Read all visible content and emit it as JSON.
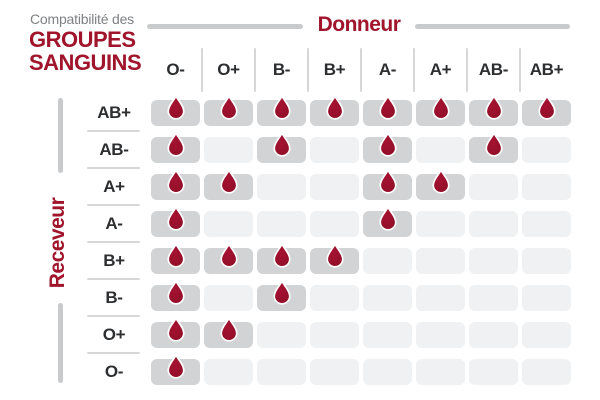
{
  "title": {
    "kicker": "Compatibilité des",
    "line1": "GROUPES",
    "line2": "SANGUINS"
  },
  "axis_labels": {
    "donor": "Donneur",
    "receiver": "Receveur"
  },
  "chart_data": {
    "type": "heatmap",
    "title": "Compatibilité des GROUPES SANGUINS",
    "column_axis_title": "Donneur",
    "row_axis_title": "Receveur",
    "columns": [
      "O-",
      "O+",
      "B-",
      "B+",
      "A-",
      "A+",
      "AB-",
      "AB+"
    ],
    "rows": [
      "AB+",
      "AB-",
      "A+",
      "A-",
      "B+",
      "B-",
      "O+",
      "O-"
    ],
    "matrix": [
      [
        1,
        1,
        1,
        1,
        1,
        1,
        1,
        1
      ],
      [
        1,
        0,
        1,
        0,
        1,
        0,
        1,
        0
      ],
      [
        1,
        1,
        0,
        0,
        1,
        1,
        0,
        0
      ],
      [
        1,
        0,
        0,
        0,
        1,
        0,
        0,
        0
      ],
      [
        1,
        1,
        1,
        1,
        0,
        0,
        0,
        0
      ],
      [
        1,
        0,
        1,
        0,
        0,
        0,
        0,
        0
      ],
      [
        1,
        1,
        0,
        0,
        0,
        0,
        0,
        0
      ],
      [
        1,
        0,
        0,
        0,
        0,
        0,
        0,
        0
      ]
    ],
    "marker_icon": "blood-drop-icon",
    "marker_meaning": "compatible"
  },
  "colors": {
    "accent_red": "#a0152c",
    "drop_red": "#a51231",
    "drop_red_dark": "#8e0f27",
    "cell_filled": "#d2d3d4",
    "cell_empty": "#f0f1f2",
    "bar_gray": "#c9cacb",
    "divider_gray": "#d6d7d7",
    "kicker_gray": "#7e8183",
    "header_text": "#2c2e30"
  }
}
